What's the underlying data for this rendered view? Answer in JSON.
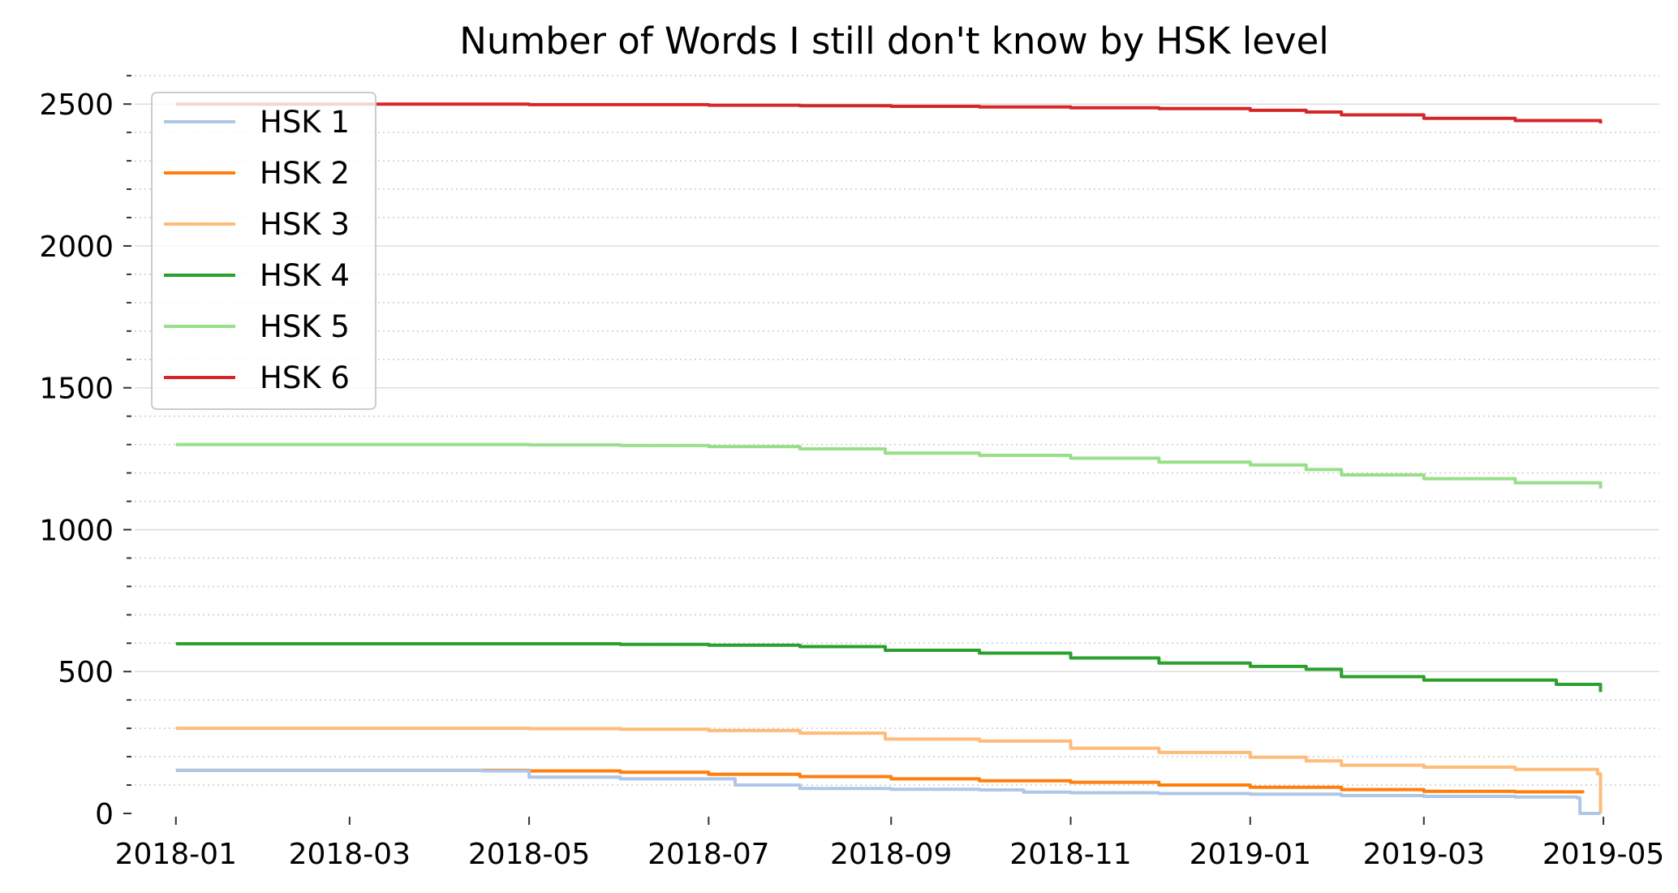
{
  "chart_data": {
    "type": "line",
    "title": "Number of Words I still don't know by HSK level",
    "xlabel": "",
    "ylabel": "",
    "x_ticks": [
      "2018-01",
      "2018-03",
      "2018-05",
      "2018-07",
      "2018-09",
      "2018-11",
      "2019-01",
      "2019-03",
      "2019-05"
    ],
    "y_ticks": [
      0,
      500,
      1000,
      1500,
      2000,
      2500
    ],
    "xlim": [
      "2017-12-18",
      "2019-05-20"
    ],
    "ylim": [
      0,
      2615
    ],
    "grid": "major solid and minor dotted horizontal lines",
    "legend_position": "upper left",
    "series": [
      {
        "name": "HSK 6",
        "color": "#d62728",
        "x": [
          "2018-01-01",
          "2018-03-01",
          "2018-05-01",
          "2018-07-01",
          "2018-08-01",
          "2018-09-01",
          "2018-10-01",
          "2018-11-01",
          "2018-12-01",
          "2019-01-01",
          "2019-01-20",
          "2019-02-01",
          "2019-03-01",
          "2019-04-01",
          "2019-04-30"
        ],
        "values": [
          2500,
          2500,
          2498,
          2496,
          2494,
          2492,
          2490,
          2487,
          2484,
          2478,
          2472,
          2462,
          2450,
          2442,
          2432
        ]
      },
      {
        "name": "HSK 5",
        "color": "#98df8a",
        "x": [
          "2018-01-01",
          "2018-03-01",
          "2018-05-01",
          "2018-06-01",
          "2018-07-01",
          "2018-08-01",
          "2018-08-30",
          "2018-10-01",
          "2018-11-01",
          "2018-12-01",
          "2019-01-01",
          "2019-01-20",
          "2019-02-01",
          "2019-03-01",
          "2019-04-01",
          "2019-04-30"
        ],
        "values": [
          1300,
          1300,
          1299,
          1297,
          1293,
          1285,
          1270,
          1262,
          1252,
          1238,
          1228,
          1212,
          1193,
          1180,
          1165,
          1145
        ]
      },
      {
        "name": "HSK 4",
        "color": "#2ca02c",
        "x": [
          "2018-01-01",
          "2018-03-01",
          "2018-05-01",
          "2018-06-01",
          "2018-07-01",
          "2018-08-01",
          "2018-08-30",
          "2018-10-01",
          "2018-11-01",
          "2018-12-01",
          "2019-01-01",
          "2019-01-20",
          "2019-02-01",
          "2019-03-01",
          "2019-04-15",
          "2019-04-30"
        ],
        "values": [
          598,
          598,
          598,
          596,
          593,
          588,
          575,
          565,
          548,
          530,
          518,
          508,
          482,
          470,
          455,
          428
        ]
      },
      {
        "name": "HSK 3",
        "color": "#ffbb78",
        "x": [
          "2018-01-01",
          "2018-03-01",
          "2018-05-01",
          "2018-06-01",
          "2018-07-01",
          "2018-08-01",
          "2018-08-30",
          "2018-10-01",
          "2018-11-01",
          "2018-12-01",
          "2019-01-01",
          "2019-01-20",
          "2019-02-01",
          "2019-03-01",
          "2019-04-01",
          "2019-04-29",
          "2019-04-30"
        ],
        "values": [
          300,
          300,
          299,
          297,
          292,
          283,
          262,
          255,
          230,
          215,
          198,
          185,
          170,
          163,
          155,
          140,
          0
        ]
      },
      {
        "name": "HSK 2",
        "color": "#ff7f0e",
        "x": [
          "2018-01-01",
          "2018-03-01",
          "2018-05-01",
          "2018-06-01",
          "2018-07-01",
          "2018-08-01",
          "2018-09-01",
          "2018-10-01",
          "2018-11-01",
          "2018-12-01",
          "2019-01-01",
          "2019-02-01",
          "2019-03-01",
          "2019-04-01",
          "2019-04-24"
        ],
        "values": [
          152,
          152,
          150,
          145,
          138,
          130,
          122,
          115,
          110,
          100,
          92,
          84,
          78,
          76,
          72
        ]
      },
      {
        "name": "HSK 1",
        "color": "#aec7e8",
        "x": [
          "2018-01-01",
          "2018-03-01",
          "2018-04-15",
          "2018-05-01",
          "2018-06-01",
          "2018-07-10",
          "2018-08-01",
          "2018-09-01",
          "2018-10-01",
          "2018-10-16",
          "2018-11-01",
          "2018-12-01",
          "2019-01-01",
          "2019-02-01",
          "2019-03-01",
          "2019-04-01",
          "2019-04-22",
          "2019-04-23",
          "2019-04-30"
        ],
        "values": [
          152,
          152,
          150,
          128,
          122,
          100,
          88,
          85,
          83,
          75,
          73,
          70,
          68,
          63,
          60,
          58,
          55,
          0,
          0
        ]
      }
    ]
  }
}
